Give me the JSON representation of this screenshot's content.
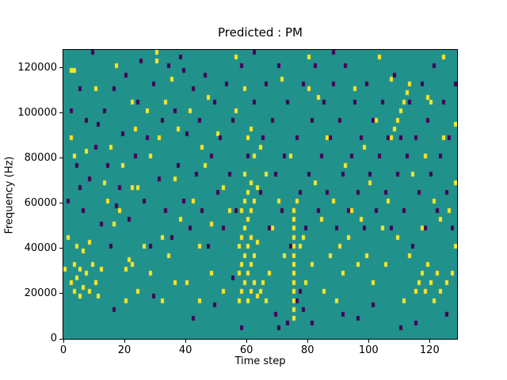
{
  "chart_data": {
    "type": "heatmap",
    "title": "Predicted : PM",
    "xlabel": "Time step",
    "ylabel": "Frequency (Hz)",
    "xlim": [
      0,
      129
    ],
    "ylim": [
      0,
      128000
    ],
    "x_ticks": [
      0,
      20,
      40,
      60,
      80,
      100,
      120
    ],
    "y_ticks": [
      0,
      20000,
      40000,
      60000,
      80000,
      100000,
      120000
    ],
    "grid": false,
    "legend": "none",
    "n_time_steps": 129,
    "n_freq_bins": 64,
    "bin_size_hz": 2000,
    "colors": {
      "background": "#21918c",
      "high": "#fde725",
      "low": "#440154",
      "frame": "#000000"
    },
    "cells": [
      [
        2,
        12,
        "y"
      ],
      [
        3,
        10,
        "y"
      ],
      [
        3,
        16,
        "y"
      ],
      [
        4,
        13,
        "y"
      ],
      [
        5,
        9,
        "y"
      ],
      [
        5,
        15,
        "y"
      ],
      [
        6,
        11,
        "y"
      ],
      [
        7,
        14,
        "y"
      ],
      [
        8,
        10,
        "y"
      ],
      [
        9,
        16,
        "y"
      ],
      [
        10,
        12,
        "y"
      ],
      [
        11,
        9,
        "y"
      ],
      [
        12,
        15,
        "y"
      ],
      [
        4,
        20,
        "y"
      ],
      [
        6,
        19,
        "y"
      ],
      [
        8,
        21,
        "y"
      ],
      [
        1,
        22,
        "y"
      ],
      [
        0,
        15,
        "y"
      ],
      [
        2,
        44,
        "y"
      ],
      [
        3,
        40,
        "y"
      ],
      [
        7,
        41,
        "y"
      ],
      [
        14,
        30,
        "y"
      ],
      [
        16,
        25,
        "y"
      ],
      [
        18,
        28,
        "y"
      ],
      [
        20,
        15,
        "y"
      ],
      [
        21,
        17,
        "y"
      ],
      [
        22,
        16,
        "y"
      ],
      [
        22,
        33,
        "y"
      ],
      [
        24,
        33,
        "y"
      ],
      [
        26,
        20,
        "y"
      ],
      [
        28,
        40,
        "y"
      ],
      [
        30,
        61,
        "y"
      ],
      [
        32,
        22,
        "y"
      ],
      [
        34,
        18,
        "y"
      ],
      [
        36,
        35,
        "y"
      ],
      [
        38,
        26,
        "y"
      ],
      [
        40,
        12,
        "y"
      ],
      [
        42,
        30,
        "y"
      ],
      [
        44,
        20,
        "y"
      ],
      [
        46,
        38,
        "y"
      ],
      [
        48,
        25,
        "y"
      ],
      [
        50,
        45,
        "y"
      ],
      [
        52,
        33,
        "y"
      ],
      [
        54,
        28,
        "y"
      ],
      [
        56,
        50,
        "y"
      ],
      [
        57,
        8,
        "y"
      ],
      [
        57,
        14,
        "y"
      ],
      [
        57,
        20,
        "y"
      ],
      [
        58,
        10,
        "y"
      ],
      [
        58,
        16,
        "y"
      ],
      [
        58,
        22,
        "y"
      ],
      [
        58,
        28,
        "y"
      ],
      [
        59,
        12,
        "y"
      ],
      [
        59,
        18,
        "y"
      ],
      [
        59,
        24,
        "y"
      ],
      [
        59,
        30,
        "y"
      ],
      [
        59,
        36,
        "y"
      ],
      [
        60,
        8,
        "y"
      ],
      [
        60,
        14,
        "y"
      ],
      [
        60,
        20,
        "y"
      ],
      [
        60,
        26,
        "y"
      ],
      [
        60,
        32,
        "y"
      ],
      [
        60,
        44,
        "y"
      ],
      [
        61,
        10,
        "y"
      ],
      [
        61,
        16,
        "y"
      ],
      [
        61,
        22,
        "y"
      ],
      [
        61,
        28,
        "y"
      ],
      [
        61,
        34,
        "y"
      ],
      [
        61,
        46,
        "y"
      ],
      [
        62,
        12,
        "y"
      ],
      [
        62,
        18,
        "y"
      ],
      [
        62,
        30,
        "y"
      ],
      [
        62,
        40,
        "y"
      ],
      [
        63,
        9,
        "y"
      ],
      [
        63,
        21,
        "y"
      ],
      [
        63,
        33,
        "y"
      ],
      [
        64,
        42,
        "y"
      ],
      [
        66,
        36,
        "y"
      ],
      [
        68,
        24,
        "y"
      ],
      [
        70,
        30,
        "y"
      ],
      [
        72,
        18,
        "y"
      ],
      [
        74,
        40,
        "y"
      ],
      [
        75,
        4,
        "y"
      ],
      [
        75,
        6,
        "y"
      ],
      [
        75,
        8,
        "y"
      ],
      [
        75,
        10,
        "y"
      ],
      [
        75,
        12,
        "y"
      ],
      [
        75,
        14,
        "y"
      ],
      [
        75,
        16,
        "y"
      ],
      [
        75,
        18,
        "y"
      ],
      [
        75,
        20,
        "y"
      ],
      [
        75,
        22,
        "y"
      ],
      [
        75,
        24,
        "y"
      ],
      [
        75,
        26,
        "y"
      ],
      [
        75,
        28,
        "y"
      ],
      [
        78,
        22,
        "y"
      ],
      [
        80,
        55,
        "y"
      ],
      [
        82,
        34,
        "y"
      ],
      [
        84,
        26,
        "y"
      ],
      [
        86,
        44,
        "y"
      ],
      [
        88,
        30,
        "y"
      ],
      [
        90,
        20,
        "y"
      ],
      [
        92,
        38,
        "y"
      ],
      [
        94,
        28,
        "y"
      ],
      [
        96,
        16,
        "y"
      ],
      [
        98,
        42,
        "y"
      ],
      [
        100,
        34,
        "y"
      ],
      [
        102,
        48,
        "y"
      ],
      [
        104,
        24,
        "y"
      ],
      [
        106,
        30,
        "y"
      ],
      [
        107,
        44,
        "y"
      ],
      [
        108,
        46,
        "y"
      ],
      [
        109,
        48,
        "y"
      ],
      [
        110,
        50,
        "y"
      ],
      [
        111,
        52,
        "y"
      ],
      [
        112,
        54,
        "y"
      ],
      [
        113,
        56,
        "y"
      ],
      [
        114,
        36,
        "y"
      ],
      [
        115,
        10,
        "y"
      ],
      [
        116,
        12,
        "y"
      ],
      [
        117,
        14,
        "y"
      ],
      [
        118,
        10,
        "y"
      ],
      [
        119,
        16,
        "y"
      ],
      [
        120,
        12,
        "y"
      ],
      [
        121,
        8,
        "y"
      ],
      [
        122,
        14,
        "y"
      ],
      [
        123,
        10,
        "y"
      ],
      [
        125,
        12,
        "y"
      ],
      [
        118,
        40,
        "y"
      ],
      [
        120,
        52,
        "y"
      ],
      [
        124,
        44,
        "y"
      ],
      [
        126,
        28,
        "y"
      ],
      [
        128,
        34,
        "y"
      ],
      [
        128,
        20,
        "y"
      ],
      [
        3,
        59,
        "y"
      ],
      [
        17,
        60,
        "y"
      ],
      [
        30,
        63,
        "y"
      ],
      [
        56,
        62,
        "y"
      ],
      [
        80,
        62,
        "y"
      ],
      [
        103,
        62,
        "y"
      ],
      [
        124,
        62,
        "y"
      ],
      [
        10,
        55,
        "y"
      ],
      [
        22,
        52,
        "y"
      ],
      [
        35,
        57,
        "y"
      ],
      [
        47,
        53,
        "y"
      ],
      [
        59,
        55,
        "y"
      ],
      [
        71,
        57,
        "y"
      ],
      [
        83,
        53,
        "y"
      ],
      [
        95,
        55,
        "y"
      ],
      [
        107,
        57,
        "y"
      ],
      [
        119,
        53,
        "y"
      ],
      [
        2,
        59,
        "y"
      ],
      [
        128,
        47,
        "y"
      ],
      [
        64,
        10,
        "y"
      ],
      [
        65,
        12,
        "y"
      ],
      [
        66,
        8,
        "y"
      ],
      [
        67,
        14,
        "y"
      ],
      [
        76,
        30,
        "y"
      ],
      [
        77,
        20,
        "y"
      ],
      [
        79,
        12,
        "y"
      ],
      [
        81,
        16,
        "y"
      ],
      [
        85,
        10,
        "y"
      ],
      [
        87,
        18,
        "y"
      ],
      [
        89,
        8,
        "y"
      ],
      [
        91,
        14,
        "y"
      ],
      [
        93,
        22,
        "y"
      ],
      [
        97,
        26,
        "y"
      ],
      [
        99,
        18,
        "y"
      ],
      [
        101,
        12,
        "y"
      ],
      [
        105,
        16,
        "y"
      ],
      [
        109,
        22,
        "y"
      ],
      [
        111,
        8,
        "y"
      ],
      [
        113,
        18,
        "y"
      ],
      [
        117,
        24,
        "y"
      ],
      [
        121,
        30,
        "y"
      ],
      [
        123,
        26,
        "y"
      ],
      [
        127,
        14,
        "y"
      ],
      [
        20,
        8,
        "y"
      ],
      [
        24,
        10,
        "y"
      ],
      [
        28,
        14,
        "y"
      ],
      [
        32,
        8,
        "y"
      ],
      [
        36,
        12,
        "y"
      ],
      [
        44,
        8,
        "y"
      ],
      [
        48,
        14,
        "y"
      ],
      [
        52,
        10,
        "y"
      ],
      [
        13,
        34,
        "y"
      ],
      [
        15,
        42,
        "y"
      ],
      [
        19,
        38,
        "y"
      ],
      [
        23,
        46,
        "y"
      ],
      [
        27,
        50,
        "y"
      ],
      [
        31,
        44,
        "y"
      ],
      [
        33,
        52,
        "y"
      ],
      [
        37,
        46,
        "y"
      ],
      [
        41,
        50,
        "y"
      ],
      [
        45,
        42,
        "y"
      ],
      [
        1,
        30,
        "p"
      ],
      [
        2,
        50,
        "p"
      ],
      [
        4,
        38,
        "p"
      ],
      [
        5,
        55,
        "p"
      ],
      [
        6,
        28,
        "p"
      ],
      [
        7,
        48,
        "p"
      ],
      [
        8,
        35,
        "p"
      ],
      [
        9,
        63,
        "p"
      ],
      [
        10,
        42,
        "p"
      ],
      [
        12,
        25,
        "p"
      ],
      [
        13,
        50,
        "p"
      ],
      [
        14,
        38,
        "p"
      ],
      [
        15,
        20,
        "p"
      ],
      [
        16,
        55,
        "p"
      ],
      [
        18,
        33,
        "p"
      ],
      [
        19,
        45,
        "p"
      ],
      [
        20,
        58,
        "p"
      ],
      [
        21,
        26,
        "p"
      ],
      [
        23,
        40,
        "p"
      ],
      [
        24,
        52,
        "p"
      ],
      [
        25,
        61,
        "p"
      ],
      [
        26,
        30,
        "p"
      ],
      [
        27,
        44,
        "p"
      ],
      [
        28,
        20,
        "p"
      ],
      [
        29,
        56,
        "p"
      ],
      [
        31,
        35,
        "p"
      ],
      [
        32,
        48,
        "p"
      ],
      [
        33,
        28,
        "p"
      ],
      [
        34,
        60,
        "p"
      ],
      [
        35,
        22,
        "p"
      ],
      [
        36,
        50,
        "p"
      ],
      [
        37,
        38,
        "p"
      ],
      [
        38,
        62,
        "p"
      ],
      [
        39,
        30,
        "p"
      ],
      [
        40,
        45,
        "p"
      ],
      [
        41,
        24,
        "p"
      ],
      [
        42,
        55,
        "p"
      ],
      [
        43,
        36,
        "p"
      ],
      [
        44,
        48,
        "p"
      ],
      [
        45,
        28,
        "p"
      ],
      [
        46,
        58,
        "p"
      ],
      [
        47,
        20,
        "p"
      ],
      [
        48,
        40,
        "p"
      ],
      [
        49,
        52,
        "p"
      ],
      [
        50,
        32,
        "p"
      ],
      [
        51,
        44,
        "p"
      ],
      [
        52,
        24,
        "p"
      ],
      [
        53,
        56,
        "p"
      ],
      [
        54,
        36,
        "p"
      ],
      [
        55,
        48,
        "p"
      ],
      [
        56,
        28,
        "p"
      ],
      [
        58,
        60,
        "p"
      ],
      [
        60,
        40,
        "p"
      ],
      [
        62,
        52,
        "p"
      ],
      [
        62,
        63,
        "p"
      ],
      [
        64,
        32,
        "p"
      ],
      [
        65,
        44,
        "p"
      ],
      [
        66,
        56,
        "p"
      ],
      [
        67,
        24,
        "p"
      ],
      [
        68,
        48,
        "p"
      ],
      [
        69,
        36,
        "p"
      ],
      [
        70,
        60,
        "p"
      ],
      [
        71,
        28,
        "p"
      ],
      [
        72,
        40,
        "p"
      ],
      [
        73,
        52,
        "p"
      ],
      [
        74,
        20,
        "p"
      ],
      [
        76,
        44,
        "p"
      ],
      [
        76,
        8,
        "p"
      ],
      [
        77,
        10,
        "p"
      ],
      [
        77,
        32,
        "p"
      ],
      [
        78,
        6,
        "p"
      ],
      [
        78,
        56,
        "p"
      ],
      [
        79,
        24,
        "p"
      ],
      [
        80,
        36,
        "p"
      ],
      [
        81,
        48,
        "p"
      ],
      [
        82,
        60,
        "p"
      ],
      [
        83,
        28,
        "p"
      ],
      [
        84,
        40,
        "p"
      ],
      [
        85,
        52,
        "p"
      ],
      [
        86,
        32,
        "p"
      ],
      [
        87,
        44,
        "p"
      ],
      [
        88,
        63,
        "p"
      ],
      [
        88,
        56,
        "p"
      ],
      [
        89,
        24,
        "p"
      ],
      [
        90,
        48,
        "p"
      ],
      [
        91,
        36,
        "p"
      ],
      [
        92,
        60,
        "p"
      ],
      [
        93,
        28,
        "p"
      ],
      [
        94,
        40,
        "p"
      ],
      [
        95,
        52,
        "p"
      ],
      [
        96,
        32,
        "p"
      ],
      [
        97,
        44,
        "p"
      ],
      [
        98,
        24,
        "p"
      ],
      [
        99,
        56,
        "p"
      ],
      [
        100,
        36,
        "p"
      ],
      [
        101,
        48,
        "p"
      ],
      [
        102,
        28,
        "p"
      ],
      [
        103,
        40,
        "p"
      ],
      [
        104,
        52,
        "p"
      ],
      [
        105,
        32,
        "p"
      ],
      [
        106,
        44,
        "p"
      ],
      [
        107,
        24,
        "p"
      ],
      [
        108,
        58,
        "p"
      ],
      [
        109,
        36,
        "p"
      ],
      [
        110,
        44,
        "p"
      ],
      [
        111,
        28,
        "p"
      ],
      [
        112,
        40,
        "p"
      ],
      [
        113,
        52,
        "p"
      ],
      [
        114,
        20,
        "p"
      ],
      [
        115,
        44,
        "p"
      ],
      [
        116,
        32,
        "p"
      ],
      [
        117,
        56,
        "p"
      ],
      [
        118,
        24,
        "p"
      ],
      [
        119,
        48,
        "p"
      ],
      [
        120,
        36,
        "p"
      ],
      [
        121,
        60,
        "p"
      ],
      [
        122,
        28,
        "p"
      ],
      [
        123,
        40,
        "p"
      ],
      [
        124,
        52,
        "p"
      ],
      [
        125,
        32,
        "p"
      ],
      [
        126,
        44,
        "p"
      ],
      [
        127,
        24,
        "p"
      ],
      [
        128,
        56,
        "p"
      ],
      [
        5,
        33,
        "p"
      ],
      [
        11,
        47,
        "p"
      ],
      [
        17,
        29,
        "p"
      ],
      [
        29,
        9,
        "p"
      ],
      [
        39,
        59,
        "p"
      ],
      [
        49,
        7,
        "p"
      ],
      [
        55,
        13,
        "p"
      ],
      [
        69,
        5,
        "p"
      ],
      [
        73,
        3,
        "p"
      ],
      [
        81,
        3,
        "p"
      ],
      [
        91,
        5,
        "p"
      ],
      [
        101,
        7,
        "p"
      ],
      [
        115,
        3,
        "p"
      ],
      [
        125,
        5,
        "p"
      ],
      [
        16,
        6,
        "p"
      ],
      [
        42,
        4,
        "p"
      ],
      [
        58,
        2,
        "p"
      ],
      [
        70,
        2,
        "p"
      ],
      [
        96,
        4,
        "p"
      ],
      [
        110,
        2,
        "p"
      ]
    ]
  }
}
